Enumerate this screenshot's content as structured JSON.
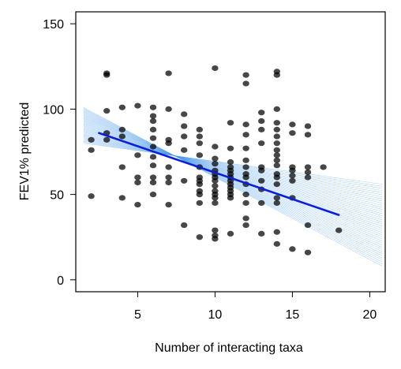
{
  "chart_data": {
    "type": "scatter",
    "title": "",
    "xlabel": "Number of interacting taxa",
    "ylabel": "FEV1% predicted",
    "xlim": [
      1,
      21
    ],
    "ylim": [
      -7,
      157
    ],
    "x_ticks": [
      5,
      10,
      15,
      20
    ],
    "y_ticks": [
      0,
      50,
      100,
      150
    ],
    "grid": false,
    "legend": "none",
    "colors": {
      "points": "#000000",
      "fit_line": "#0b1fd6",
      "bootstrap_lines": "#4f9ee8"
    },
    "fit_line": {
      "x": [
        2.5,
        18
      ],
      "y": [
        86,
        38
      ]
    },
    "bootstrap_band": {
      "count": 40,
      "x": [
        1.5,
        20.8
      ],
      "left_y_range": [
        80,
        101
      ],
      "right_y_range": [
        8,
        56
      ]
    },
    "points": [
      {
        "x": 2,
        "y": 49
      },
      {
        "x": 2,
        "y": 76
      },
      {
        "x": 2,
        "y": 82
      },
      {
        "x": 3,
        "y": 82
      },
      {
        "x": 3,
        "y": 86
      },
      {
        "x": 3,
        "y": 99
      },
      {
        "x": 3,
        "y": 120
      },
      {
        "x": 3,
        "y": 121
      },
      {
        "x": 4,
        "y": 48
      },
      {
        "x": 4,
        "y": 66
      },
      {
        "x": 4,
        "y": 84
      },
      {
        "x": 4,
        "y": 88
      },
      {
        "x": 4,
        "y": 101
      },
      {
        "x": 5,
        "y": 44
      },
      {
        "x": 5,
        "y": 57
      },
      {
        "x": 5,
        "y": 60
      },
      {
        "x": 5,
        "y": 73
      },
      {
        "x": 5,
        "y": 102
      },
      {
        "x": 6,
        "y": 50
      },
      {
        "x": 6,
        "y": 57
      },
      {
        "x": 6,
        "y": 60
      },
      {
        "x": 6,
        "y": 67
      },
      {
        "x": 6,
        "y": 72
      },
      {
        "x": 6,
        "y": 78
      },
      {
        "x": 6,
        "y": 83
      },
      {
        "x": 6,
        "y": 88
      },
      {
        "x": 6,
        "y": 93
      },
      {
        "x": 6,
        "y": 96
      },
      {
        "x": 6,
        "y": 101
      },
      {
        "x": 7,
        "y": 44
      },
      {
        "x": 7,
        "y": 57
      },
      {
        "x": 7,
        "y": 60
      },
      {
        "x": 7,
        "y": 66
      },
      {
        "x": 7,
        "y": 80
      },
      {
        "x": 7,
        "y": 82
      },
      {
        "x": 7,
        "y": 100
      },
      {
        "x": 7,
        "y": 121
      },
      {
        "x": 8,
        "y": 32
      },
      {
        "x": 8,
        "y": 58
      },
      {
        "x": 8,
        "y": 76
      },
      {
        "x": 8,
        "y": 84
      },
      {
        "x": 8,
        "y": 90
      },
      {
        "x": 8,
        "y": 97
      },
      {
        "x": 9,
        "y": 25
      },
      {
        "x": 9,
        "y": 45
      },
      {
        "x": 9,
        "y": 50
      },
      {
        "x": 9,
        "y": 52
      },
      {
        "x": 9,
        "y": 56
      },
      {
        "x": 9,
        "y": 58
      },
      {
        "x": 9,
        "y": 60
      },
      {
        "x": 9,
        "y": 66
      },
      {
        "x": 9,
        "y": 73
      },
      {
        "x": 9,
        "y": 80
      },
      {
        "x": 9,
        "y": 84
      },
      {
        "x": 9,
        "y": 88
      },
      {
        "x": 10,
        "y": 24
      },
      {
        "x": 10,
        "y": 26
      },
      {
        "x": 10,
        "y": 29
      },
      {
        "x": 10,
        "y": 45
      },
      {
        "x": 10,
        "y": 48
      },
      {
        "x": 10,
        "y": 50
      },
      {
        "x": 10,
        "y": 52
      },
      {
        "x": 10,
        "y": 55
      },
      {
        "x": 10,
        "y": 58
      },
      {
        "x": 10,
        "y": 60
      },
      {
        "x": 10,
        "y": 62
      },
      {
        "x": 10,
        "y": 64
      },
      {
        "x": 10,
        "y": 68
      },
      {
        "x": 10,
        "y": 71
      },
      {
        "x": 10,
        "y": 78
      },
      {
        "x": 10,
        "y": 124
      },
      {
        "x": 11,
        "y": 27
      },
      {
        "x": 11,
        "y": 48
      },
      {
        "x": 11,
        "y": 50
      },
      {
        "x": 11,
        "y": 52
      },
      {
        "x": 11,
        "y": 54
      },
      {
        "x": 11,
        "y": 56
      },
      {
        "x": 11,
        "y": 58
      },
      {
        "x": 11,
        "y": 60
      },
      {
        "x": 11,
        "y": 62
      },
      {
        "x": 11,
        "y": 64
      },
      {
        "x": 11,
        "y": 66
      },
      {
        "x": 11,
        "y": 69
      },
      {
        "x": 11,
        "y": 77
      },
      {
        "x": 11,
        "y": 92
      },
      {
        "x": 12,
        "y": 32
      },
      {
        "x": 12,
        "y": 36
      },
      {
        "x": 12,
        "y": 45
      },
      {
        "x": 12,
        "y": 50
      },
      {
        "x": 12,
        "y": 56
      },
      {
        "x": 12,
        "y": 60
      },
      {
        "x": 12,
        "y": 62
      },
      {
        "x": 12,
        "y": 66
      },
      {
        "x": 12,
        "y": 70
      },
      {
        "x": 12,
        "y": 77
      },
      {
        "x": 12,
        "y": 85
      },
      {
        "x": 12,
        "y": 91
      },
      {
        "x": 12,
        "y": 115
      },
      {
        "x": 12,
        "y": 120
      },
      {
        "x": 13,
        "y": 27
      },
      {
        "x": 13,
        "y": 45
      },
      {
        "x": 13,
        "y": 53
      },
      {
        "x": 13,
        "y": 58
      },
      {
        "x": 13,
        "y": 64
      },
      {
        "x": 13,
        "y": 66
      },
      {
        "x": 13,
        "y": 80
      },
      {
        "x": 13,
        "y": 88
      },
      {
        "x": 13,
        "y": 93
      },
      {
        "x": 13,
        "y": 98
      },
      {
        "x": 14,
        "y": 21
      },
      {
        "x": 14,
        "y": 28
      },
      {
        "x": 14,
        "y": 45
      },
      {
        "x": 14,
        "y": 48
      },
      {
        "x": 14,
        "y": 56
      },
      {
        "x": 14,
        "y": 60
      },
      {
        "x": 14,
        "y": 62
      },
      {
        "x": 14,
        "y": 67
      },
      {
        "x": 14,
        "y": 70
      },
      {
        "x": 14,
        "y": 73
      },
      {
        "x": 14,
        "y": 76
      },
      {
        "x": 14,
        "y": 80
      },
      {
        "x": 14,
        "y": 84
      },
      {
        "x": 14,
        "y": 88
      },
      {
        "x": 14,
        "y": 92
      },
      {
        "x": 14,
        "y": 100
      },
      {
        "x": 14,
        "y": 120
      },
      {
        "x": 14,
        "y": 122
      },
      {
        "x": 15,
        "y": 18
      },
      {
        "x": 15,
        "y": 48
      },
      {
        "x": 15,
        "y": 58
      },
      {
        "x": 15,
        "y": 61
      },
      {
        "x": 15,
        "y": 64
      },
      {
        "x": 15,
        "y": 66
      },
      {
        "x": 15,
        "y": 86
      },
      {
        "x": 15,
        "y": 91
      },
      {
        "x": 16,
        "y": 16
      },
      {
        "x": 16,
        "y": 32
      },
      {
        "x": 16,
        "y": 60
      },
      {
        "x": 16,
        "y": 63
      },
      {
        "x": 16,
        "y": 66
      },
      {
        "x": 16,
        "y": 85
      },
      {
        "x": 16,
        "y": 90
      },
      {
        "x": 17,
        "y": 66
      },
      {
        "x": 18,
        "y": 29
      }
    ]
  }
}
